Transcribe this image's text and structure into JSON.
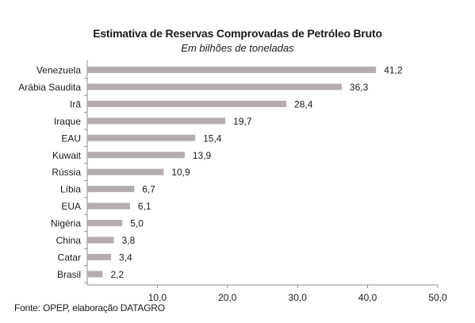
{
  "chart_data": {
    "type": "bar",
    "orientation": "horizontal",
    "title": "Estimativa de Reservas Comprovadas de Petróleo Bruto",
    "subtitle": "Em bilhões de toneladas",
    "source": "Fonte: OPEP, elaboração DATAGRO",
    "categories": [
      "Venezuela",
      "Arábia Saudita",
      "Irã",
      "Iraque",
      "EAU",
      "Kuwait",
      "Rússia",
      "Líbia",
      "EUA",
      "Nigéria",
      "China",
      "Catar",
      "Brasil"
    ],
    "values": [
      41.2,
      36.3,
      28.4,
      19.7,
      15.4,
      13.9,
      10.9,
      6.7,
      6.1,
      5.0,
      3.8,
      3.4,
      2.2
    ],
    "value_labels": [
      "41,2",
      "36,3",
      "28,4",
      "19,7",
      "15,4",
      "13,9",
      "10,9",
      "6,7",
      "6,1",
      "5,0",
      "3,8",
      "3,4",
      "2,2"
    ],
    "xlim": [
      0,
      50
    ],
    "xticks": [
      10,
      20,
      30,
      40,
      50
    ],
    "xtick_labels": [
      "10,0",
      "20,0",
      "30,0",
      "40,0",
      "50,0"
    ],
    "grid": false,
    "legend": "none",
    "bar_color": "#b5adad",
    "axis_color": "#8c8c8c"
  }
}
